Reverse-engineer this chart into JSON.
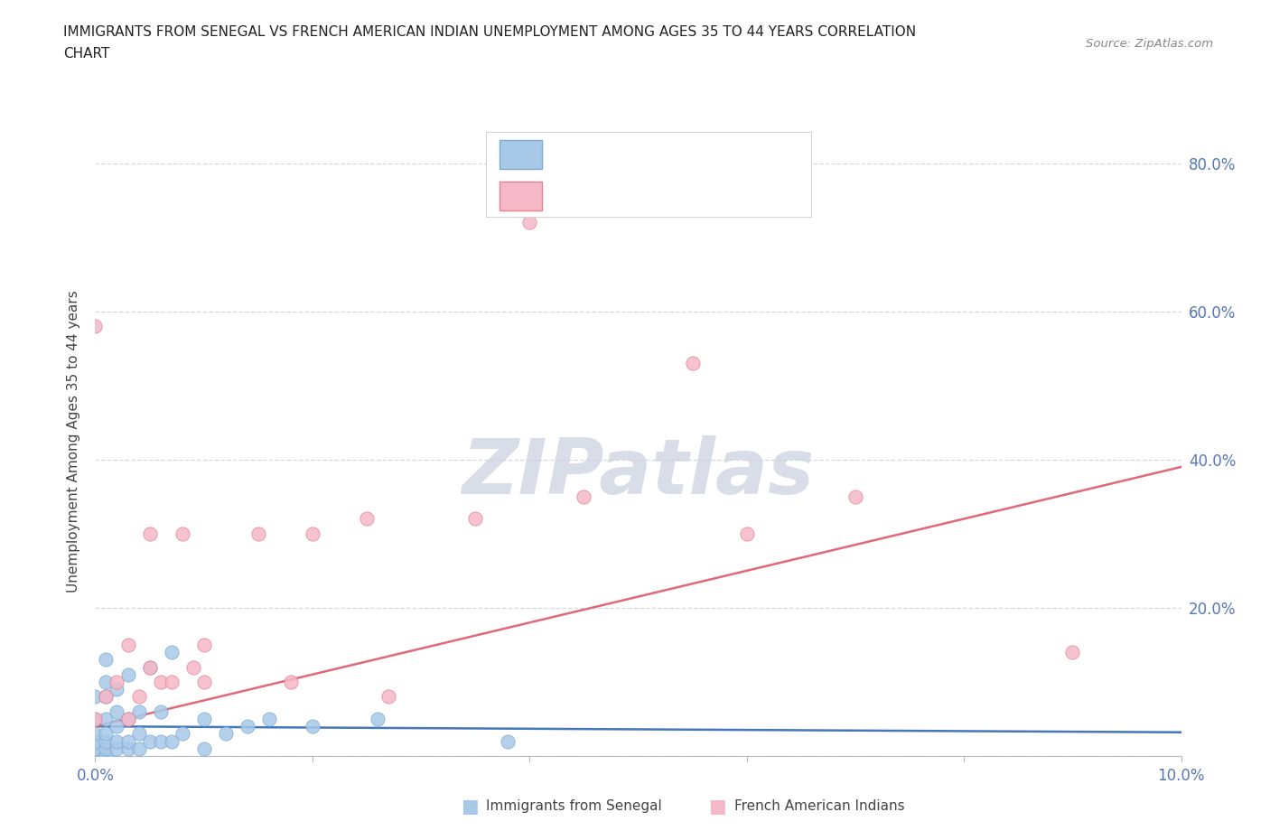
{
  "title_line1": "IMMIGRANTS FROM SENEGAL VS FRENCH AMERICAN INDIAN UNEMPLOYMENT AMONG AGES 35 TO 44 YEARS CORRELATION",
  "title_line2": "CHART",
  "source": "Source: ZipAtlas.com",
  "ylabel": "Unemployment Among Ages 35 to 44 years",
  "xlim": [
    0.0,
    0.1
  ],
  "ylim": [
    0.0,
    0.85
  ],
  "color_senegal": "#a8c8e8",
  "color_senegal_edge": "#7aaad0",
  "color_french": "#f5b8c8",
  "color_french_edge": "#e88090",
  "color_senegal_line": "#4477bb",
  "color_french_line": "#e06878",
  "watermark_color": "#d8dde8",
  "grid_color": "#d0d4dc",
  "tick_label_color": "#5577bb",
  "senegal_x": [
    0.0,
    0.0,
    0.0,
    0.0,
    0.0,
    0.0,
    0.0,
    0.0,
    0.0,
    0.0,
    0.001,
    0.001,
    0.001,
    0.001,
    0.001,
    0.001,
    0.001,
    0.001,
    0.001,
    0.002,
    0.002,
    0.002,
    0.002,
    0.002,
    0.003,
    0.003,
    0.003,
    0.003,
    0.004,
    0.004,
    0.004,
    0.005,
    0.005,
    0.006,
    0.006,
    0.007,
    0.007,
    0.008,
    0.01,
    0.01,
    0.012,
    0.014,
    0.016,
    0.02,
    0.026,
    0.038
  ],
  "senegal_y": [
    0.0,
    0.0,
    0.0,
    0.0,
    0.0,
    0.01,
    0.02,
    0.03,
    0.05,
    0.08,
    0.0,
    0.0,
    0.01,
    0.02,
    0.03,
    0.05,
    0.08,
    0.1,
    0.13,
    0.01,
    0.02,
    0.04,
    0.06,
    0.09,
    0.01,
    0.02,
    0.05,
    0.11,
    0.01,
    0.03,
    0.06,
    0.02,
    0.12,
    0.02,
    0.06,
    0.02,
    0.14,
    0.03,
    0.01,
    0.05,
    0.03,
    0.04,
    0.05,
    0.04,
    0.05,
    0.02
  ],
  "french_x": [
    0.0,
    0.0,
    0.001,
    0.002,
    0.003,
    0.003,
    0.004,
    0.005,
    0.005,
    0.006,
    0.007,
    0.008,
    0.009,
    0.01,
    0.01,
    0.015,
    0.018,
    0.02,
    0.025,
    0.027,
    0.035,
    0.04,
    0.045,
    0.055,
    0.06,
    0.07,
    0.09
  ],
  "french_y": [
    0.05,
    0.58,
    0.08,
    0.1,
    0.05,
    0.15,
    0.08,
    0.12,
    0.3,
    0.1,
    0.1,
    0.3,
    0.12,
    0.1,
    0.15,
    0.3,
    0.1,
    0.3,
    0.32,
    0.08,
    0.32,
    0.72,
    0.35,
    0.53,
    0.3,
    0.35,
    0.14
  ],
  "sen_trend_x0": 0.0,
  "sen_trend_x1": 0.1,
  "sen_trend_y0": 0.04,
  "sen_trend_y1": 0.032,
  "fr_trend_x0": 0.0,
  "fr_trend_x1": 0.1,
  "fr_trend_y0": 0.04,
  "fr_trend_y1": 0.39
}
